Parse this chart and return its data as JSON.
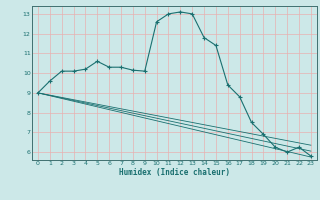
{
  "xlabel": "Humidex (Indice chaleur)",
  "bg_color": "#cce8e8",
  "grid_color_major": "#e8b0b0",
  "grid_color_minor": "#ddd0d0",
  "line_color": "#1a7070",
  "xlim": [
    -0.5,
    23.5
  ],
  "ylim": [
    5.6,
    13.4
  ],
  "xticks": [
    0,
    1,
    2,
    3,
    4,
    5,
    6,
    7,
    8,
    9,
    10,
    11,
    12,
    13,
    14,
    15,
    16,
    17,
    18,
    19,
    20,
    21,
    22,
    23
  ],
  "yticks": [
    6,
    7,
    8,
    9,
    10,
    11,
    12,
    13
  ],
  "main_series": {
    "x": [
      0,
      1,
      2,
      3,
      4,
      5,
      6,
      7,
      8,
      9,
      10,
      11,
      12,
      13,
      14,
      15,
      16,
      17,
      18,
      19,
      20,
      21,
      22,
      23
    ],
    "y": [
      9.0,
      9.6,
      10.1,
      10.1,
      10.2,
      10.6,
      10.3,
      10.3,
      10.15,
      10.1,
      12.6,
      13.0,
      13.1,
      13.0,
      11.8,
      11.4,
      9.4,
      8.8,
      7.5,
      6.9,
      6.25,
      6.0,
      6.25,
      5.8
    ]
  },
  "line1": {
    "x": [
      0,
      23
    ],
    "y": [
      9.0,
      5.75
    ]
  },
  "line2": {
    "x": [
      0,
      23
    ],
    "y": [
      9.0,
      6.05
    ]
  },
  "line3": {
    "x": [
      0,
      23
    ],
    "y": [
      9.0,
      6.35
    ]
  }
}
